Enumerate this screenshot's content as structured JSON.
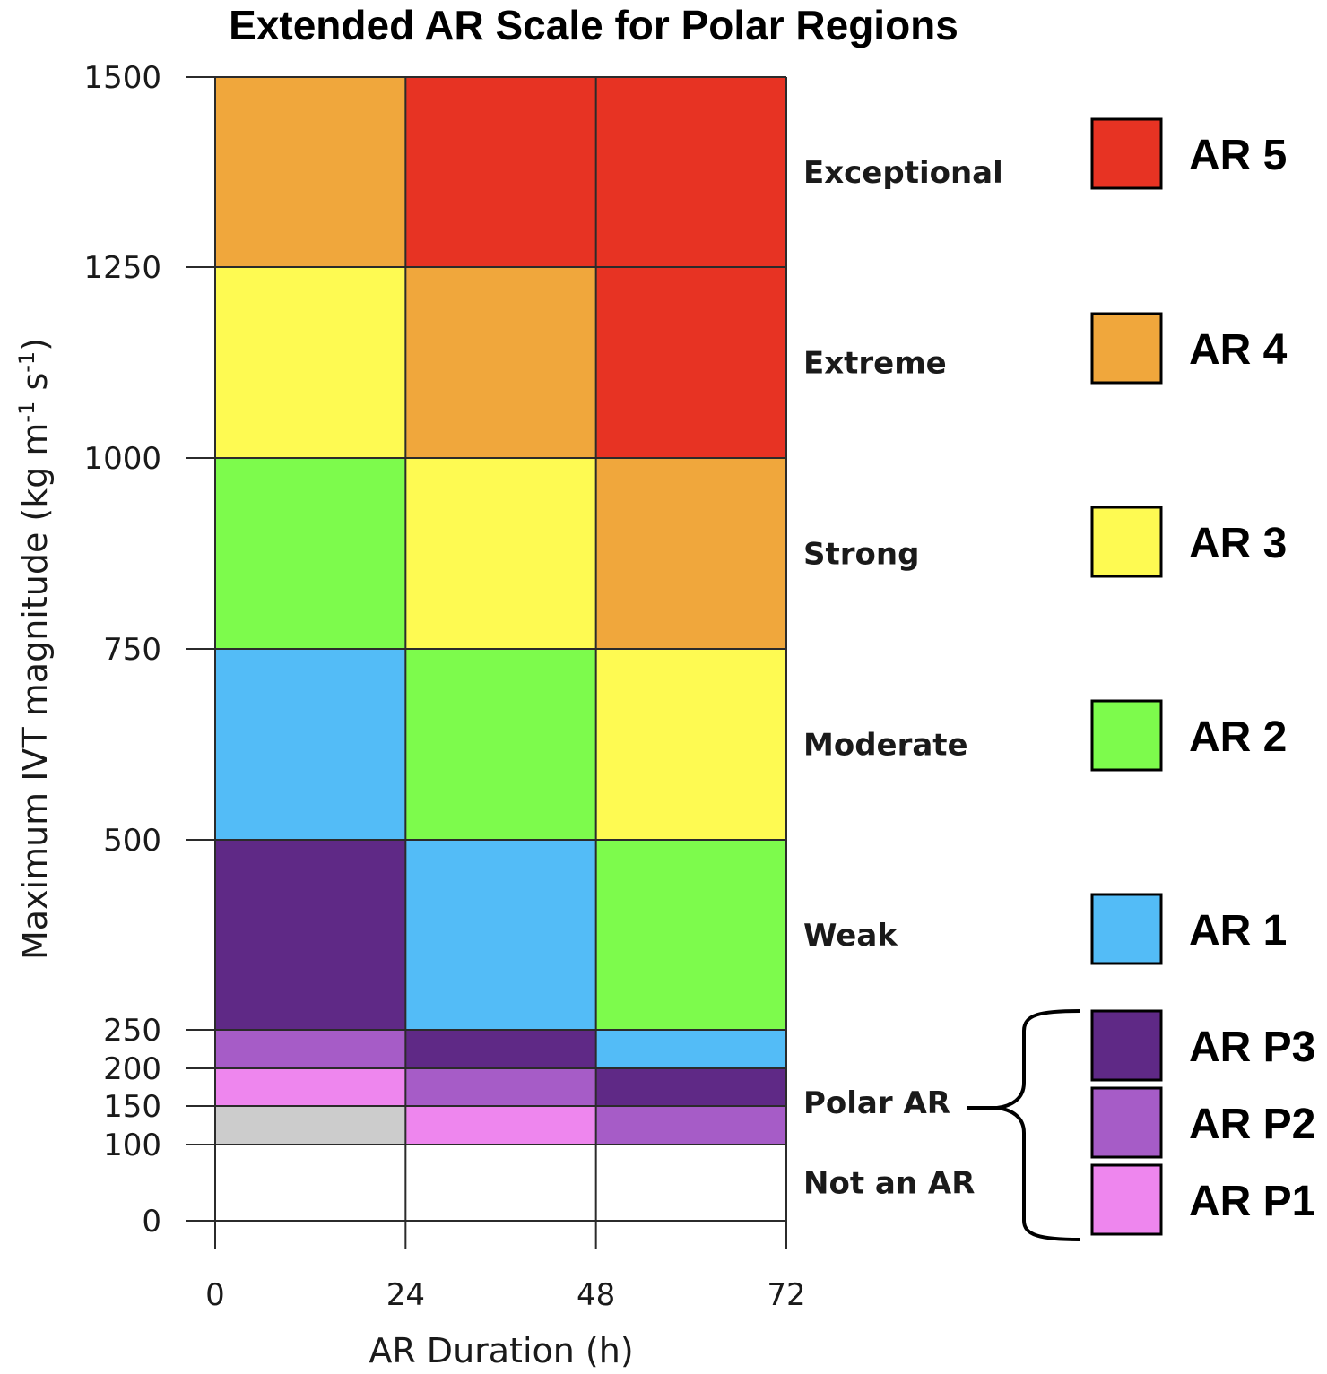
{
  "chart_data": {
    "type": "heatmap",
    "title": "Extended AR Scale for Polar Regions",
    "xlabel": "AR Duration (h)",
    "ylabel_main": "Maximum IVT magnitude (kg m",
    "ylabel_sup1": "-1",
    "ylabel_mid": " s",
    "ylabel_sup2": "-1",
    "ylabel_end": ")",
    "xlim": [
      0,
      72
    ],
    "ylim": [
      0,
      1500
    ],
    "x_ticks": [
      0,
      24,
      48,
      72
    ],
    "y_ticks": [
      0,
      100,
      150,
      200,
      250,
      500,
      750,
      1000,
      1250,
      1500
    ],
    "colors": {
      "AR 5": "#e73323",
      "AR 4": "#f0a73c",
      "AR 3": "#fefa52",
      "AR 2": "#7dfb4c",
      "AR 1": "#53bcf7",
      "AR P3": "#5f2986",
      "AR P2": "#a65cc7",
      "AR P1": "#ee86ee",
      "none": "#cccccc"
    },
    "cells": [
      {
        "x0": 0,
        "x1": 24,
        "y0": 1250,
        "y1": 1500,
        "cat": "AR 4"
      },
      {
        "x0": 24,
        "x1": 48,
        "y0": 1250,
        "y1": 1500,
        "cat": "AR 5"
      },
      {
        "x0": 48,
        "x1": 72,
        "y0": 1250,
        "y1": 1500,
        "cat": "AR 5"
      },
      {
        "x0": 0,
        "x1": 24,
        "y0": 1000,
        "y1": 1250,
        "cat": "AR 3"
      },
      {
        "x0": 24,
        "x1": 48,
        "y0": 1000,
        "y1": 1250,
        "cat": "AR 4"
      },
      {
        "x0": 48,
        "x1": 72,
        "y0": 1000,
        "y1": 1250,
        "cat": "AR 5"
      },
      {
        "x0": 0,
        "x1": 24,
        "y0": 750,
        "y1": 1000,
        "cat": "AR 2"
      },
      {
        "x0": 24,
        "x1": 48,
        "y0": 750,
        "y1": 1000,
        "cat": "AR 3"
      },
      {
        "x0": 48,
        "x1": 72,
        "y0": 750,
        "y1": 1000,
        "cat": "AR 4"
      },
      {
        "x0": 0,
        "x1": 24,
        "y0": 500,
        "y1": 750,
        "cat": "AR 1"
      },
      {
        "x0": 24,
        "x1": 48,
        "y0": 500,
        "y1": 750,
        "cat": "AR 2"
      },
      {
        "x0": 48,
        "x1": 72,
        "y0": 500,
        "y1": 750,
        "cat": "AR 3"
      },
      {
        "x0": 0,
        "x1": 24,
        "y0": 250,
        "y1": 500,
        "cat": "AR P3"
      },
      {
        "x0": 24,
        "x1": 48,
        "y0": 250,
        "y1": 500,
        "cat": "AR 1"
      },
      {
        "x0": 48,
        "x1": 72,
        "y0": 250,
        "y1": 500,
        "cat": "AR 2"
      },
      {
        "x0": 0,
        "x1": 24,
        "y0": 200,
        "y1": 250,
        "cat": "AR P2"
      },
      {
        "x0": 24,
        "x1": 48,
        "y0": 200,
        "y1": 250,
        "cat": "AR P3"
      },
      {
        "x0": 48,
        "x1": 72,
        "y0": 200,
        "y1": 250,
        "cat": "AR 1"
      },
      {
        "x0": 0,
        "x1": 24,
        "y0": 150,
        "y1": 200,
        "cat": "AR P1"
      },
      {
        "x0": 24,
        "x1": 48,
        "y0": 150,
        "y1": 200,
        "cat": "AR P2"
      },
      {
        "x0": 48,
        "x1": 72,
        "y0": 150,
        "y1": 200,
        "cat": "AR P3"
      },
      {
        "x0": 0,
        "x1": 24,
        "y0": 100,
        "y1": 150,
        "cat": "none"
      },
      {
        "x0": 24,
        "x1": 48,
        "y0": 100,
        "y1": 150,
        "cat": "AR P1"
      },
      {
        "x0": 48,
        "x1": 72,
        "y0": 100,
        "y1": 150,
        "cat": "AR P2"
      }
    ],
    "band_labels": [
      {
        "text": "Exceptional",
        "y": 1375
      },
      {
        "text": "Extreme",
        "y": 1125
      },
      {
        "text": "Strong",
        "y": 875
      },
      {
        "text": "Moderate",
        "y": 625
      },
      {
        "text": "Weak",
        "y": 375
      },
      {
        "text": "Polar AR",
        "y": 155
      },
      {
        "text": "Not an AR",
        "y": 50
      }
    ],
    "legend": [
      "AR 5",
      "AR 4",
      "AR 3",
      "AR 2",
      "AR 1",
      "AR P3",
      "AR P2",
      "AR P1"
    ]
  }
}
